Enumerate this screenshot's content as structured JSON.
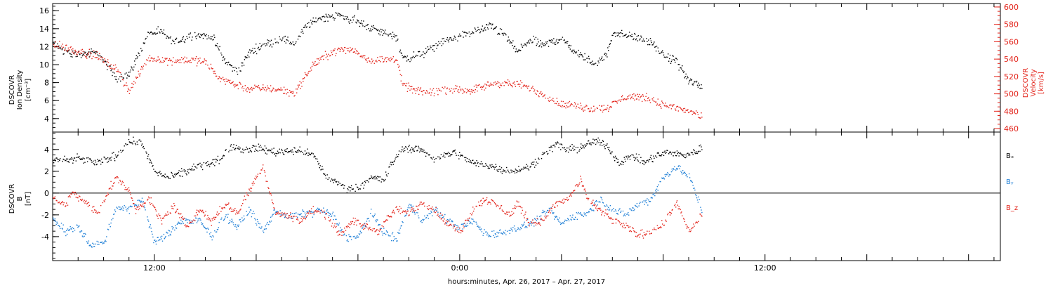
{
  "colors": {
    "black": "#000000",
    "red": "#e3241b",
    "blue": "#1f7fd6"
  },
  "chart_data": [
    {
      "id": "plasma",
      "type": "scatter",
      "left_axis": {
        "label": [
          "DSCOVR",
          "Ion Density",
          "[cm⁻³]"
        ],
        "ylim": [
          2.5,
          16.8
        ],
        "ticks": [
          4,
          6,
          8,
          10,
          12,
          14,
          16
        ]
      },
      "right_axis": {
        "label": [
          "DSCOVR",
          "Velocity",
          "[km/s]"
        ],
        "ylim": [
          456,
          604
        ],
        "ticks": [
          460,
          480,
          500,
          520,
          540,
          560,
          580,
          600
        ]
      },
      "series": [
        {
          "axis": "left",
          "color": "black",
          "knots": [
            [
              0,
              12.3
            ],
            [
              1.5,
              11.2
            ],
            [
              3.5,
              11.3
            ],
            [
              5,
              8.5
            ],
            [
              6,
              9.0
            ],
            [
              7.5,
              13.5
            ],
            [
              8.5,
              13.7
            ],
            [
              9.5,
              12.5
            ],
            [
              11,
              13.4
            ],
            [
              12.5,
              13.2
            ],
            [
              13.5,
              10.5
            ],
            [
              14.5,
              9.2
            ],
            [
              15.5,
              11.5
            ],
            [
              16.5,
              12.2
            ],
            [
              18,
              13.0
            ],
            [
              19,
              12.3
            ],
            [
              19.8,
              14.2
            ],
            [
              21,
              15.3
            ],
            [
              22.5,
              15.5
            ],
            [
              24,
              14.8
            ],
            [
              25.5,
              13.8
            ],
            [
              27,
              13.2
            ],
            [
              27.5,
              10.7
            ],
            [
              29,
              11.2
            ],
            [
              30.5,
              12.5
            ],
            [
              32.5,
              13.5
            ],
            [
              34.5,
              14.3
            ],
            [
              35.5,
              13.3
            ],
            [
              36.5,
              11.5
            ],
            [
              37.5,
              12.8
            ],
            [
              38.5,
              12.2
            ],
            [
              40,
              13.0
            ],
            [
              41,
              11.5
            ],
            [
              42.5,
              10.2
            ],
            [
              43.5,
              11.0
            ],
            [
              44,
              13.6
            ],
            [
              45.5,
              13.2
            ],
            [
              47,
              12.5
            ],
            [
              48,
              11.0
            ],
            [
              49,
              10.5
            ],
            [
              50,
              8.2
            ],
            [
              51,
              7.6
            ]
          ]
        },
        {
          "axis": "right",
          "color": "red",
          "knots": [
            [
              0,
              558
            ],
            [
              1.5,
              551
            ],
            [
              3.5,
              544
            ],
            [
              5,
              528
            ],
            [
              6,
              504
            ],
            [
              7.5,
              542
            ],
            [
              9,
              539
            ],
            [
              10.5,
              540
            ],
            [
              12,
              537
            ],
            [
              13,
              520
            ],
            [
              14.5,
              510
            ],
            [
              15.5,
              506
            ],
            [
              17,
              507
            ],
            [
              19,
              502
            ],
            [
              20.5,
              535
            ],
            [
              22,
              550
            ],
            [
              23.5,
              552
            ],
            [
              25,
              539
            ],
            [
              27,
              541
            ],
            [
              27.5,
              510
            ],
            [
              29,
              502
            ],
            [
              31,
              505
            ],
            [
              33,
              505
            ],
            [
              34.5,
              512
            ],
            [
              35.5,
              513
            ],
            [
              37,
              510
            ],
            [
              38.5,
              500
            ],
            [
              40,
              488
            ],
            [
              41,
              487
            ],
            [
              42.5,
              483
            ],
            [
              43.5,
              484
            ],
            [
              45,
              497
            ],
            [
              46.5,
              497
            ],
            [
              47.5,
              490
            ],
            [
              49,
              484
            ],
            [
              50.5,
              478
            ],
            [
              51,
              472
            ]
          ]
        }
      ]
    },
    {
      "id": "magnetic-field",
      "type": "scatter",
      "left_axis": {
        "label": [
          "DSCOVR",
          "B",
          "[nT]"
        ],
        "ylim": [
          -6.2,
          5.6
        ],
        "ticks": [
          -4,
          -2,
          0,
          2,
          4
        ]
      },
      "zero_line": true,
      "series": [
        {
          "name": "Bₓ",
          "color": "black",
          "knots": [
            [
              0,
              3.0
            ],
            [
              2,
              3.2
            ],
            [
              3.5,
              2.8
            ],
            [
              5,
              3.5
            ],
            [
              6,
              4.8
            ],
            [
              7,
              4.6
            ],
            [
              8,
              2.0
            ],
            [
              9,
              1.5
            ],
            [
              10.5,
              2.0
            ],
            [
              12,
              2.8
            ],
            [
              13,
              3.0
            ],
            [
              14,
              4.3
            ],
            [
              15,
              4.0
            ],
            [
              16,
              4.2
            ],
            [
              17.5,
              3.8
            ],
            [
              19,
              4.0
            ],
            [
              20.5,
              3.5
            ],
            [
              21.5,
              1.5
            ],
            [
              23,
              0.5
            ],
            [
              24,
              0.5
            ],
            [
              25,
              1.5
            ],
            [
              26,
              1.2
            ],
            [
              26.5,
              2.5
            ],
            [
              27.5,
              4.2
            ],
            [
              29,
              4.0
            ],
            [
              30,
              3.2
            ],
            [
              31.5,
              3.8
            ],
            [
              33,
              2.8
            ],
            [
              34.5,
              2.5
            ],
            [
              36,
              2.0
            ],
            [
              37.5,
              2.5
            ],
            [
              38.5,
              3.5
            ],
            [
              39.5,
              4.5
            ],
            [
              40.5,
              4.0
            ],
            [
              41.5,
              4.2
            ],
            [
              42.5,
              4.8
            ],
            [
              43.5,
              4.5
            ],
            [
              44.5,
              2.8
            ],
            [
              45.5,
              3.5
            ],
            [
              46.5,
              2.8
            ],
            [
              47.5,
              3.5
            ],
            [
              48.5,
              3.8
            ],
            [
              49.5,
              3.5
            ],
            [
              50.5,
              3.8
            ],
            [
              51,
              4.2
            ]
          ]
        },
        {
          "name": "Bᵧ",
          "color": "blue",
          "knots": [
            [
              0,
              -2.2
            ],
            [
              1,
              -3.5
            ],
            [
              2,
              -3.0
            ],
            [
              3,
              -4.8
            ],
            [
              4,
              -4.5
            ],
            [
              5,
              -1.2
            ],
            [
              6,
              -1.5
            ],
            [
              7,
              -0.5
            ],
            [
              8,
              -4.5
            ],
            [
              9,
              -3.8
            ],
            [
              10,
              -2.5
            ],
            [
              11.5,
              -2.5
            ],
            [
              12.5,
              -4.0
            ],
            [
              13.5,
              -2.0
            ],
            [
              14.5,
              -3.0
            ],
            [
              15.5,
              -1.5
            ],
            [
              16.5,
              -3.5
            ],
            [
              17.5,
              -1.5
            ],
            [
              18.5,
              -2.2
            ],
            [
              20,
              -1.8
            ],
            [
              21,
              -1.5
            ],
            [
              22,
              -2.0
            ],
            [
              23,
              -4.0
            ],
            [
              24,
              -4.0
            ],
            [
              25,
              -1.8
            ],
            [
              26,
              -3.5
            ],
            [
              27,
              -4.2
            ],
            [
              28,
              -1.0
            ],
            [
              29,
              -2.5
            ],
            [
              30,
              -1.5
            ],
            [
              31,
              -2.5
            ],
            [
              32,
              -3.2
            ],
            [
              33,
              -2.5
            ],
            [
              34,
              -3.8
            ],
            [
              35.5,
              -3.5
            ],
            [
              37,
              -3.0
            ],
            [
              38,
              -2.5
            ],
            [
              39,
              -1.5
            ],
            [
              40,
              -2.8
            ],
            [
              41,
              -2.0
            ],
            [
              42,
              -1.8
            ],
            [
              43,
              -0.5
            ],
            [
              44,
              -1.5
            ],
            [
              45,
              -2.0
            ],
            [
              46,
              -1.0
            ],
            [
              47,
              -0.5
            ],
            [
              48,
              1.5
            ],
            [
              49,
              2.5
            ],
            [
              50,
              1.5
            ],
            [
              51,
              -1.5
            ]
          ]
        },
        {
          "name": "B_z",
          "color": "red",
          "knots": [
            [
              0,
              -0.3
            ],
            [
              1,
              -1.2
            ],
            [
              1.5,
              0.2
            ],
            [
              2.5,
              -0.8
            ],
            [
              3.5,
              -1.8
            ],
            [
              4.5,
              0.5
            ],
            [
              5,
              1.5
            ],
            [
              6,
              0.2
            ],
            [
              6.5,
              -1.5
            ],
            [
              7.5,
              -0.5
            ],
            [
              8.5,
              -2.5
            ],
            [
              9.5,
              -1.2
            ],
            [
              10.5,
              -3.0
            ],
            [
              11.5,
              -1.5
            ],
            [
              12.5,
              -2.5
            ],
            [
              13.5,
              -1.0
            ],
            [
              14.5,
              -1.8
            ],
            [
              15.5,
              0.5
            ],
            [
              16.5,
              2.5
            ],
            [
              17.5,
              -1.8
            ],
            [
              18.5,
              -2.0
            ],
            [
              19.5,
              -2.5
            ],
            [
              20.5,
              -1.5
            ],
            [
              21.5,
              -2.0
            ],
            [
              22.5,
              -3.8
            ],
            [
              23.5,
              -2.5
            ],
            [
              24.5,
              -3.0
            ],
            [
              25.5,
              -3.5
            ],
            [
              26.5,
              -2.0
            ],
            [
              27,
              -1.5
            ],
            [
              28,
              -1.8
            ],
            [
              29,
              -0.8
            ],
            [
              30,
              -1.5
            ],
            [
              31,
              -2.8
            ],
            [
              32,
              -3.5
            ],
            [
              33,
              -1.5
            ],
            [
              34,
              -0.5
            ],
            [
              35,
              -1.2
            ],
            [
              36,
              -2.0
            ],
            [
              36.5,
              -0.8
            ],
            [
              37.5,
              -2.8
            ],
            [
              38.5,
              -2.5
            ],
            [
              39.5,
              -1.0
            ],
            [
              40.5,
              -0.5
            ],
            [
              41.5,
              1.2
            ],
            [
              42,
              -0.5
            ],
            [
              43,
              -1.5
            ],
            [
              44,
              -2.5
            ],
            [
              45,
              -3.0
            ],
            [
              46,
              -3.8
            ],
            [
              47,
              -3.5
            ],
            [
              48,
              -2.8
            ],
            [
              49,
              -0.8
            ],
            [
              50,
              -3.5
            ],
            [
              51,
              -2.0
            ]
          ]
        }
      ]
    }
  ],
  "x_axis": {
    "label": "hours:minutes, Apr. 26, 2017 – Apr. 27, 2017",
    "range_hours": [
      0,
      74.5
    ],
    "major_ticks": [
      {
        "hour": 8,
        "label": "12:00"
      },
      {
        "hour": 32,
        "label": "0:00"
      },
      {
        "hour": 56,
        "label": "12:00"
      }
    ],
    "minor_tick_step_hours": 2
  }
}
